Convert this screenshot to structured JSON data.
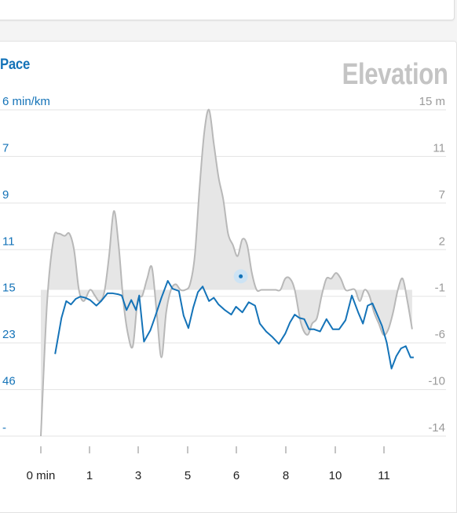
{
  "header_card": {},
  "chart_data": {
    "type": "line",
    "title_left": "Pace",
    "title_right": "Elevation",
    "x_ticks": [
      "0 min",
      "1",
      "3",
      "5",
      "6",
      "8",
      "10",
      "11"
    ],
    "pace_ticks": [
      "6 min/km",
      "7",
      "9",
      "11",
      "15",
      "23",
      "46",
      "-"
    ],
    "elevation_ticks": [
      "15 m",
      "11",
      "7",
      "2",
      "-1",
      "-6",
      "-10",
      "-14"
    ],
    "elevation_ylim": [
      -14,
      15
    ],
    "x_range_min": [
      0,
      12
    ],
    "series": [
      {
        "name": "Elevation",
        "color": "#b8b8b8",
        "fill": "#e6e6e6",
        "baseline": -1,
        "x": [
          0,
          0.2,
          0.4,
          0.55,
          0.75,
          0.9,
          1.05,
          1.2,
          1.35,
          1.55,
          1.7,
          1.85,
          2.0,
          2.15,
          2.3,
          2.45,
          2.6,
          2.75,
          2.9,
          3.05,
          3.2,
          3.35,
          3.5,
          3.65,
          3.8,
          3.95,
          4.1,
          4.25,
          4.4,
          4.55,
          4.7,
          4.85,
          5.0,
          5.15,
          5.3,
          5.45,
          5.6,
          5.75,
          5.9,
          6.05,
          6.2,
          6.35,
          6.5,
          6.65,
          6.8,
          6.95,
          7.1,
          7.25,
          7.4,
          7.55,
          7.7,
          7.85,
          8.0,
          8.2,
          8.4,
          8.55,
          8.7,
          8.85,
          9.0,
          9.15,
          9.3,
          9.45,
          9.6,
          9.75,
          9.9,
          10.05,
          10.2,
          10.35,
          10.5,
          10.65,
          10.8,
          10.95,
          11.1,
          11.25,
          11.4,
          11.55,
          11.7
        ],
        "values": [
          -14,
          -2,
          3.5,
          4,
          3.8,
          4,
          2.5,
          -1,
          -2,
          -1,
          -1.5,
          -2,
          -1.2,
          2,
          6,
          3,
          -2,
          -5,
          -6,
          -2,
          -1.5,
          0,
          1,
          -3,
          -7,
          -3,
          -1,
          -0.5,
          -1,
          -1,
          -0.5,
          2,
          8,
          13,
          15,
          12,
          9,
          7,
          4,
          3,
          2,
          3.5,
          3,
          0.5,
          -1,
          -1,
          -1,
          -1,
          -1,
          -1,
          0,
          0,
          -1,
          -4,
          -5,
          -4,
          -3.5,
          -1.5,
          0,
          0,
          0.5,
          0,
          -1,
          -1,
          -1,
          -2,
          -1,
          -1.5,
          -3,
          -4,
          -5,
          -4.5,
          -3,
          -1,
          0,
          -2,
          -4.5
        ]
      },
      {
        "name": "Pace",
        "color": "#1473b8",
        "x": [
          0.45,
          0.65,
          0.8,
          0.95,
          1.1,
          1.25,
          1.4,
          1.55,
          1.75,
          1.9,
          2.1,
          2.25,
          2.45,
          2.55,
          2.7,
          2.85,
          3.0,
          3.1,
          3.25,
          3.45,
          3.6,
          3.8,
          4.0,
          4.15,
          4.35,
          4.5,
          4.65,
          4.8,
          4.95,
          5.1,
          5.3,
          5.45,
          5.6,
          5.8,
          6.0,
          6.15,
          6.35,
          6.55,
          6.75,
          6.9,
          7.1,
          7.3,
          7.5,
          7.7,
          7.85,
          8.0,
          8.15,
          8.3,
          8.45,
          8.6,
          8.8,
          9.0,
          9.2,
          9.4,
          9.6,
          9.8,
          10.0,
          10.15,
          10.3,
          10.45,
          10.6,
          10.75,
          10.9,
          11.05,
          11.2,
          11.35,
          11.5,
          11.65,
          11.75
        ],
        "elevation_scale_values": [
          -6.7,
          -3.5,
          -2.0,
          -2.3,
          -1.8,
          -1.6,
          -1.7,
          -1.9,
          -2.4,
          -2.0,
          -1.3,
          -1.3,
          -1.4,
          -1.5,
          -2.8,
          -1.9,
          -2.8,
          -1.5,
          -5.6,
          -4.6,
          -3.4,
          -1.7,
          -0.2,
          -0.9,
          -1.1,
          -3.3,
          -4.4,
          -2.6,
          -1.2,
          -0.7,
          -2.0,
          -1.7,
          -2.3,
          -2.8,
          -3.2,
          -2.5,
          -3.0,
          -2.1,
          -2.4,
          -4.0,
          -4.7,
          -5.2,
          -5.8,
          -4.9,
          -3.9,
          -3.2,
          -3.5,
          -3.6,
          -4.5,
          -4.5,
          -4.7,
          -3.6,
          -4.5,
          -4.5,
          -3.7,
          -1.5,
          -3.0,
          -4.0,
          -2.4,
          -2.2,
          -3.2,
          -4.2,
          -5.7,
          -8.0,
          -6.9,
          -6.2,
          -6.0,
          -7.0,
          -7.0
        ],
        "marker": {
          "x": 6.3,
          "elevation_scale_value": 0.2
        }
      }
    ],
    "grid": true
  }
}
